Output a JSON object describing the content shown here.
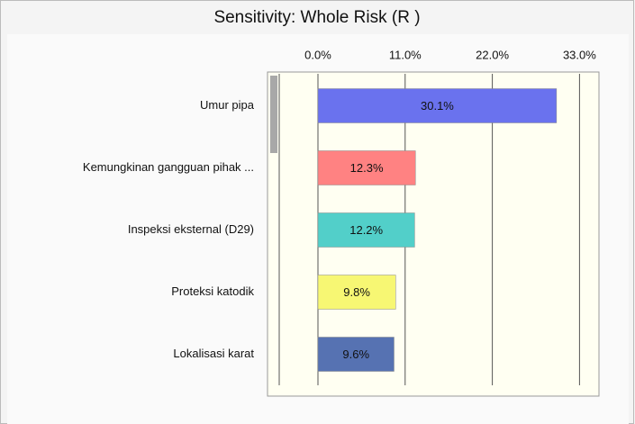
{
  "chart_data": {
    "type": "bar",
    "orientation": "horizontal",
    "title": "Sensitivity: Whole Risk (R )",
    "categories": [
      "Umur pipa",
      "Kemungkinan gangguan pihak ...",
      "Inspeksi eksternal (D29)",
      "Proteksi katodik",
      "Lokalisasi karat"
    ],
    "values": [
      30.1,
      12.3,
      12.2,
      9.8,
      9.6
    ],
    "value_labels": [
      "30.1%",
      "12.3%",
      "12.2%",
      "9.8%",
      "9.6%"
    ],
    "colors": [
      "#6a72ee",
      "#ff8282",
      "#52cfc9",
      "#f7f773",
      "#5672b2"
    ],
    "xlim": [
      -5,
      35
    ],
    "xticks": [
      {
        "value": 0,
        "label": "0.0%"
      },
      {
        "value": 11,
        "label": "11.0%"
      },
      {
        "value": 22,
        "label": "22.0%"
      },
      {
        "value": 33,
        "label": "33.0%"
      }
    ],
    "grid": true
  }
}
